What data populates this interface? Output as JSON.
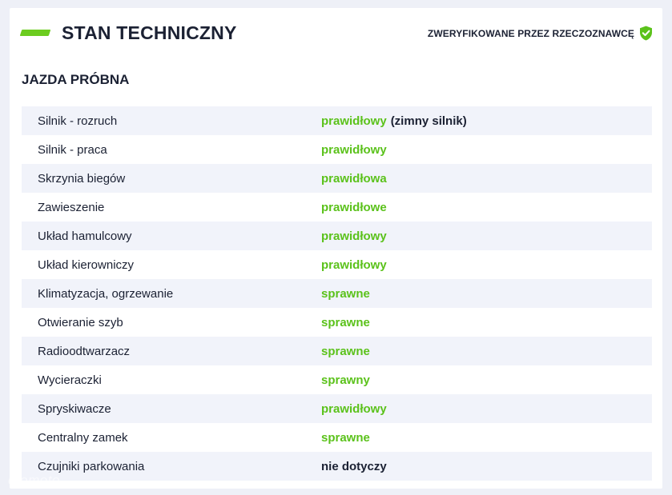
{
  "header": {
    "title": "STAN TECHNICZNY",
    "verified_text": "ZWERYFIKOWANE PRZEZ RZECZOZNAWCĘ",
    "accent_color": "#6ccc1f"
  },
  "section": {
    "title": "JAZDA PRÓBNA"
  },
  "rows": [
    {
      "label": "Silnik - rozruch",
      "value": "prawidłowy",
      "note": "(zimny silnik)",
      "status": "green"
    },
    {
      "label": "Silnik - praca",
      "value": "prawidłowy",
      "note": "",
      "status": "green"
    },
    {
      "label": "Skrzynia biegów",
      "value": "prawidłowa",
      "note": "",
      "status": "green"
    },
    {
      "label": "Zawieszenie",
      "value": "prawidłowe",
      "note": "",
      "status": "green"
    },
    {
      "label": "Układ hamulcowy",
      "value": "prawidłowy",
      "note": "",
      "status": "green"
    },
    {
      "label": "Układ kierowniczy",
      "value": "prawidłowy",
      "note": "",
      "status": "green"
    },
    {
      "label": "Klimatyzacja, ogrzewanie",
      "value": "sprawne",
      "note": "",
      "status": "green"
    },
    {
      "label": "Otwieranie szyb",
      "value": "sprawne",
      "note": "",
      "status": "green"
    },
    {
      "label": "Radioodtwarzacz",
      "value": "sprawne",
      "note": "",
      "status": "green"
    },
    {
      "label": "Wycieraczki",
      "value": "sprawny",
      "note": "",
      "status": "green"
    },
    {
      "label": "Spryskiwacze",
      "value": "prawidłowy",
      "note": "",
      "status": "green"
    },
    {
      "label": "Centralny zamek",
      "value": "sprawne",
      "note": "",
      "status": "green"
    },
    {
      "label": "Czujniki parkowania",
      "value": "nie dotyczy",
      "note": "",
      "status": "dark"
    }
  ],
  "watermark": "otomoto",
  "colors": {
    "status_green": "#5bc21b",
    "text_dark": "#1b2133",
    "stripe": "#f1f3fa"
  }
}
